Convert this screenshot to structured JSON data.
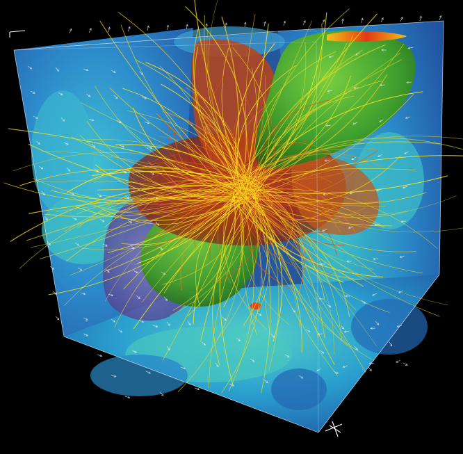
{
  "scene": {
    "background": "#000000",
    "face_colors": {
      "left": "#2f86c8",
      "right": "#2a78c0",
      "bottom": "#2c9ccf",
      "back": "#3a6fb8"
    },
    "surface_colors": {
      "green": "#4fb32e",
      "green_dark": "#2c7e1e",
      "red": "#b53a16",
      "orange": "#d1651c",
      "purple": "#6e5fa5"
    },
    "streamline_colors": [
      "#f4e21a",
      "#f7d31c",
      "#e98d1d",
      "#d9521a"
    ],
    "arrow_color": "#e8eef4",
    "icons": [
      "axis-triad-icon",
      "axis-marker-icon"
    ]
  }
}
